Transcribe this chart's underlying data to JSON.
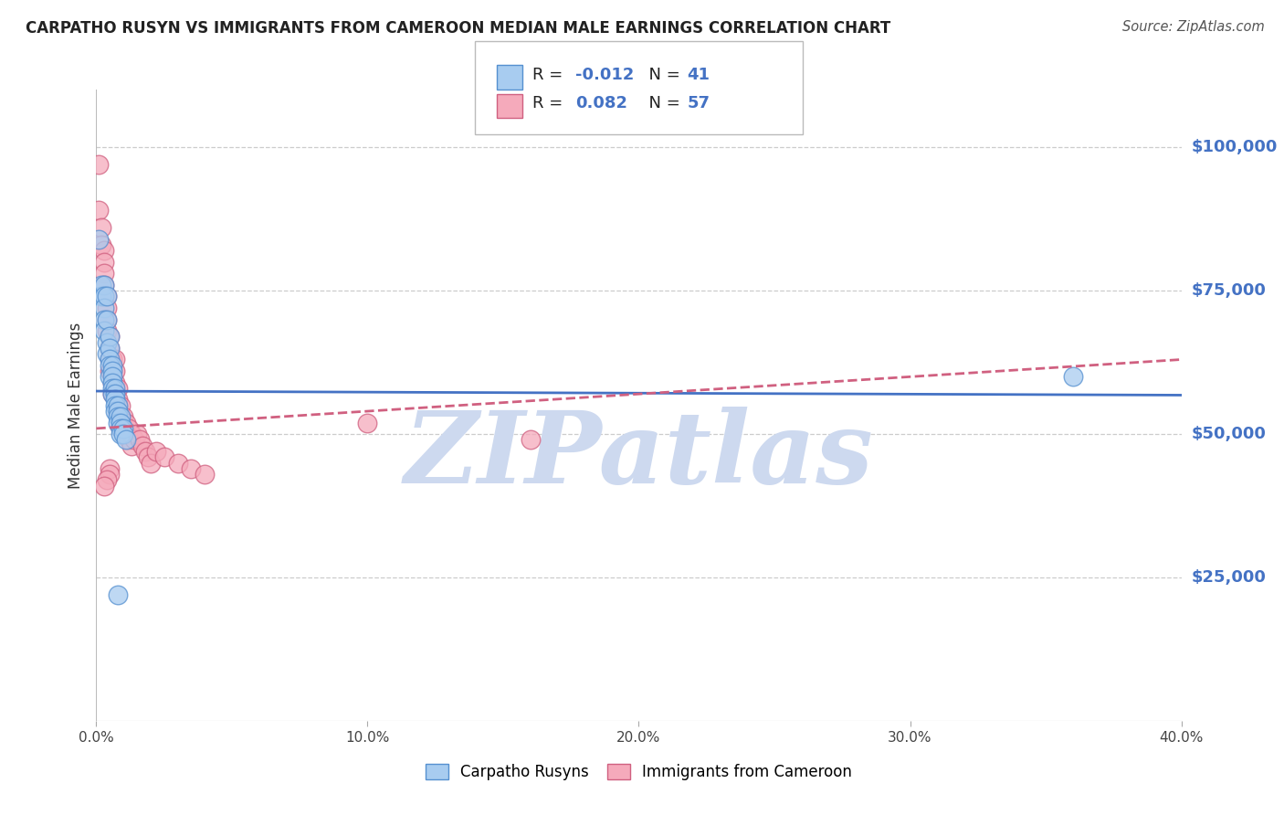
{
  "title": "CARPATHO RUSYN VS IMMIGRANTS FROM CAMEROON MEDIAN MALE EARNINGS CORRELATION CHART",
  "source": "Source: ZipAtlas.com",
  "ylabel": "Median Male Earnings",
  "xmin": 0.0,
  "xmax": 0.4,
  "ymin": 0,
  "ymax": 110000,
  "yticks": [
    25000,
    50000,
    75000,
    100000
  ],
  "ytick_labels": [
    "$25,000",
    "$50,000",
    "$75,000",
    "$100,000"
  ],
  "xticks": [
    0.0,
    0.1,
    0.2,
    0.3,
    0.4
  ],
  "xtick_labels": [
    "0.0%",
    "10.0%",
    "20.0%",
    "30.0%",
    "40.0%"
  ],
  "color_blue": "#A8CCF0",
  "color_pink": "#F5AABB",
  "edge_blue": "#5590D0",
  "edge_pink": "#D06080",
  "line_blue": "#4472C4",
  "line_pink": "#D06080",
  "watermark": "ZIPatlas",
  "watermark_color": "#CDD9EF",
  "blue_r": "-0.012",
  "blue_n": "41",
  "pink_r": "0.082",
  "pink_n": "57",
  "label_blue": "Carpatho Rusyns",
  "label_pink": "Immigrants from Cameroon",
  "background_color": "#FFFFFF",
  "grid_color": "#CCCCCC",
  "blue_x": [
    0.001,
    0.002,
    0.002,
    0.003,
    0.003,
    0.003,
    0.003,
    0.003,
    0.004,
    0.004,
    0.004,
    0.004,
    0.005,
    0.005,
    0.005,
    0.005,
    0.005,
    0.006,
    0.006,
    0.006,
    0.006,
    0.006,
    0.006,
    0.007,
    0.007,
    0.007,
    0.007,
    0.007,
    0.008,
    0.008,
    0.008,
    0.008,
    0.009,
    0.009,
    0.009,
    0.009,
    0.01,
    0.01,
    0.011,
    0.36,
    0.008
  ],
  "blue_y": [
    84000,
    76000,
    74000,
    76000,
    74000,
    72000,
    70000,
    68000,
    74000,
    70000,
    66000,
    64000,
    67000,
    65000,
    63000,
    62000,
    60000,
    62000,
    61000,
    60000,
    59000,
    58000,
    57000,
    58000,
    57000,
    56000,
    55000,
    54000,
    55000,
    54000,
    53000,
    52000,
    53000,
    52000,
    51000,
    50000,
    51000,
    50000,
    49000,
    60000,
    22000
  ],
  "pink_x": [
    0.001,
    0.001,
    0.002,
    0.002,
    0.003,
    0.003,
    0.003,
    0.003,
    0.004,
    0.004,
    0.004,
    0.004,
    0.005,
    0.005,
    0.005,
    0.005,
    0.006,
    0.006,
    0.006,
    0.006,
    0.007,
    0.007,
    0.007,
    0.007,
    0.008,
    0.008,
    0.008,
    0.008,
    0.009,
    0.009,
    0.009,
    0.01,
    0.01,
    0.011,
    0.011,
    0.012,
    0.012,
    0.013,
    0.013,
    0.014,
    0.015,
    0.016,
    0.017,
    0.018,
    0.019,
    0.02,
    0.022,
    0.025,
    0.03,
    0.035,
    0.04,
    0.1,
    0.16,
    0.005,
    0.005,
    0.004,
    0.003
  ],
  "pink_y": [
    97000,
    89000,
    86000,
    83000,
    82000,
    80000,
    78000,
    76000,
    74000,
    72000,
    70000,
    68000,
    67000,
    65000,
    63000,
    61000,
    63000,
    61000,
    59000,
    57000,
    63000,
    61000,
    59000,
    57000,
    58000,
    56000,
    55000,
    54000,
    55000,
    53000,
    51000,
    53000,
    51000,
    52000,
    50000,
    51000,
    49000,
    50000,
    48000,
    49000,
    50000,
    49000,
    48000,
    47000,
    46000,
    45000,
    47000,
    46000,
    45000,
    44000,
    43000,
    52000,
    49000,
    44000,
    43000,
    42000,
    41000
  ],
  "blue_trend_x": [
    0.0,
    0.4
  ],
  "blue_trend_y": [
    57500,
    56800
  ],
  "pink_trend_x": [
    0.0,
    0.4
  ],
  "pink_trend_y": [
    51000,
    63000
  ]
}
